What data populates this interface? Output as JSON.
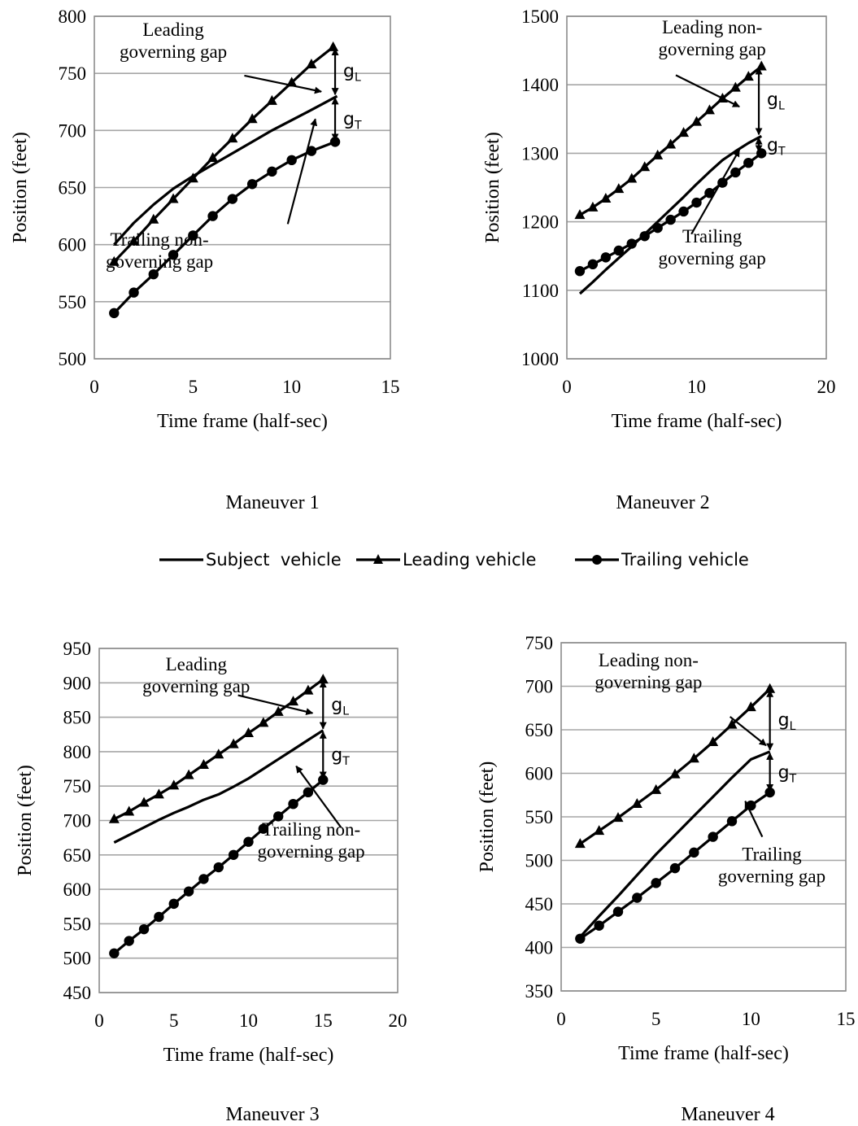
{
  "colors": {
    "series": "#000000",
    "grid": "#a6a6a6",
    "frame": "#8c8c8c",
    "background": "#ffffff"
  },
  "legend": [
    {
      "name": "Subject  vehicle",
      "marker": "none"
    },
    {
      "name": "Leading vehicle",
      "marker": "triangle"
    },
    {
      "name": "Trailing vehicle",
      "marker": "circle"
    }
  ],
  "chart_data": [
    {
      "type": "line",
      "caption": "Maneuver 1",
      "xlabel": "Time frame (half-sec)",
      "ylabel": "Position (feet)",
      "xlim": [
        0,
        15
      ],
      "ylim": [
        500,
        800
      ],
      "xticks": [
        0,
        5,
        10,
        15
      ],
      "yticks": [
        500,
        550,
        600,
        650,
        700,
        750,
        800
      ],
      "grid": "horizontal",
      "series": [
        {
          "name": "Subject  vehicle",
          "marker": "none",
          "x": [
            1,
            2,
            3,
            4,
            5,
            6,
            7,
            8,
            9,
            10,
            11,
            12.3
          ],
          "y": [
            600,
            619,
            635,
            649,
            660,
            670,
            680,
            690,
            700,
            709,
            718,
            730
          ]
        },
        {
          "name": "Leading vehicle",
          "marker": "triangle",
          "x": [
            1,
            2,
            3,
            4,
            5,
            6,
            7,
            8,
            9,
            10,
            11,
            12.1
          ],
          "y": [
            585,
            603,
            622,
            640,
            658,
            676,
            693,
            710,
            726,
            742,
            758,
            773
          ]
        },
        {
          "name": "Trailing vehicle",
          "marker": "circle",
          "x": [
            1,
            2,
            3,
            4,
            5,
            6,
            7,
            8,
            9,
            10,
            11,
            12.2
          ],
          "y": [
            540,
            558,
            574,
            591,
            608,
            625,
            640,
            653,
            664,
            674,
            682,
            690
          ]
        }
      ],
      "annotations": [
        {
          "lines": [
            "Leading",
            "governing gap"
          ],
          "pos": [
            4,
            783
          ],
          "arrow_from": [
            7.6,
            748
          ],
          "arrow_to": [
            11.5,
            734
          ]
        },
        {
          "lines": [
            "Trailing non-",
            "governing gap"
          ],
          "pos": [
            3.3,
            599
          ],
          "arrow_from": [
            9.8,
            618
          ],
          "arrow_to": [
            11.2,
            710
          ]
        }
      ],
      "gap_markers": [
        {
          "label": "gL",
          "x": 12.2,
          "y_top": 773,
          "y_bottom": 730,
          "label_y": 752
        },
        {
          "label": "gT",
          "x": 12.2,
          "y_top": 730,
          "y_bottom": 690,
          "label_y": 710
        }
      ]
    },
    {
      "type": "line",
      "caption": "Maneuver 2",
      "xlabel": "Time frame (half-sec)",
      "ylabel": "Position (feet)",
      "xlim": [
        0,
        20
      ],
      "ylim": [
        1000,
        1500
      ],
      "xticks": [
        0,
        10,
        20
      ],
      "yticks": [
        1000,
        1100,
        1200,
        1300,
        1400,
        1500
      ],
      "grid": "horizontal",
      "series": [
        {
          "name": "Subject  vehicle",
          "marker": "none",
          "x": [
            1,
            2,
            3,
            4,
            5,
            6,
            7,
            8,
            9,
            10,
            11,
            12,
            13,
            14,
            15
          ],
          "y": [
            1095,
            1112,
            1130,
            1147,
            1164,
            1182,
            1200,
            1218,
            1236,
            1255,
            1273,
            1290,
            1303,
            1315,
            1325
          ]
        },
        {
          "name": "Leading vehicle",
          "marker": "triangle",
          "x": [
            1,
            2,
            3,
            4,
            5,
            6,
            7,
            8,
            9,
            10,
            11,
            12,
            13,
            14,
            15
          ],
          "y": [
            1210,
            1221,
            1234,
            1248,
            1263,
            1280,
            1297,
            1313,
            1330,
            1346,
            1363,
            1380,
            1396,
            1412,
            1427
          ]
        },
        {
          "name": "Trailing vehicle",
          "marker": "circle",
          "x": [
            1,
            2,
            3,
            4,
            5,
            6,
            7,
            8,
            9,
            10,
            11,
            12,
            13,
            14,
            15
          ],
          "y": [
            1128,
            1138,
            1148,
            1158,
            1168,
            1179,
            1191,
            1203,
            1215,
            1228,
            1242,
            1257,
            1272,
            1286,
            1300
          ]
        }
      ],
      "annotations": [
        {
          "lines": [
            "Leading non-",
            "governing gap"
          ],
          "pos": [
            11.2,
            1475
          ],
          "arrow_from": [
            8.4,
            1414
          ],
          "arrow_to": [
            13.3,
            1368
          ]
        },
        {
          "lines": [
            "Trailing",
            "governing gap"
          ],
          "pos": [
            11.2,
            1170
          ],
          "arrow_from": [
            9.6,
            1182
          ],
          "arrow_to": [
            13.3,
            1305
          ]
        }
      ],
      "gap_markers": [
        {
          "label": "gL",
          "x": 14.8,
          "y_top": 1427,
          "y_bottom": 1325,
          "label_y": 1378
        },
        {
          "label": "gT",
          "x": 14.8,
          "y_top": 1325,
          "y_bottom": 1300,
          "label_y": 1312
        }
      ]
    },
    {
      "type": "line",
      "caption": "Maneuver 3",
      "xlabel": "Time frame (half-sec)",
      "ylabel": "Position (feet)",
      "xlim": [
        0,
        20
      ],
      "ylim": [
        450,
        950
      ],
      "xticks": [
        0,
        5,
        10,
        15,
        20
      ],
      "yticks": [
        450,
        500,
        550,
        600,
        650,
        700,
        750,
        800,
        850,
        900,
        950
      ],
      "grid": "horizontal",
      "series": [
        {
          "name": "Subject  vehicle",
          "marker": "none",
          "x": [
            1,
            2,
            3,
            4,
            5,
            6,
            7,
            8,
            9,
            10,
            11,
            12,
            13,
            14,
            15
          ],
          "y": [
            668,
            679,
            690,
            701,
            711,
            720,
            730,
            738,
            749,
            761,
            775,
            789,
            803,
            817,
            831
          ]
        },
        {
          "name": "Leading vehicle",
          "marker": "triangle",
          "x": [
            1,
            2,
            3,
            4,
            5,
            6,
            7,
            8,
            9,
            10,
            11,
            12,
            13,
            14,
            15
          ],
          "y": [
            702,
            713,
            726,
            738,
            751,
            766,
            781,
            796,
            811,
            827,
            842,
            858,
            873,
            889,
            905
          ]
        },
        {
          "name": "Trailing vehicle",
          "marker": "circle",
          "x": [
            1,
            2,
            3,
            4,
            5,
            6,
            7,
            8,
            9,
            10,
            11,
            12,
            13,
            14,
            15
          ],
          "y": [
            507,
            525,
            542,
            560,
            579,
            597,
            615,
            632,
            650,
            669,
            688,
            706,
            724,
            741,
            759
          ]
        }
      ],
      "annotations": [
        {
          "lines": [
            "Leading",
            "governing gap"
          ],
          "pos": [
            6.5,
            918
          ],
          "arrow_from": [
            9.3,
            882
          ],
          "arrow_to": [
            14.3,
            856
          ]
        },
        {
          "lines": [
            "Trailing non-",
            "governing gap"
          ],
          "pos": [
            14.2,
            678
          ],
          "arrow_from": [
            16.2,
            690
          ],
          "arrow_to": [
            13.2,
            779
          ]
        }
      ],
      "gap_markers": [
        {
          "label": "gL",
          "x": 15,
          "y_top": 905,
          "y_bottom": 831,
          "label_y": 868
        },
        {
          "label": "gT",
          "x": 15,
          "y_top": 831,
          "y_bottom": 759,
          "label_y": 795
        }
      ]
    },
    {
      "type": "line",
      "caption": "Maneuver 4",
      "xlabel": "Time frame (half-sec)",
      "ylabel": "Position (feet)",
      "xlim": [
        0,
        15
      ],
      "ylim": [
        350,
        750
      ],
      "xticks": [
        0,
        5,
        10,
        15
      ],
      "yticks": [
        350,
        400,
        450,
        500,
        550,
        600,
        650,
        700,
        750
      ],
      "grid": "horizontal",
      "series": [
        {
          "name": "Subject  vehicle",
          "marker": "none",
          "x": [
            1,
            2,
            3,
            4,
            5,
            6,
            7,
            8,
            9,
            10,
            11
          ],
          "y": [
            412,
            436,
            459,
            483,
            507,
            529,
            551,
            573,
            595,
            616,
            625
          ]
        },
        {
          "name": "Leading vehicle",
          "marker": "triangle",
          "x": [
            1,
            2,
            3,
            4,
            5,
            6,
            7,
            8,
            9,
            10,
            11
          ],
          "y": [
            519,
            534,
            549,
            565,
            581,
            599,
            617,
            636,
            656,
            676,
            697
          ]
        },
        {
          "name": "Trailing vehicle",
          "marker": "circle",
          "x": [
            1,
            2,
            3,
            4,
            5,
            6,
            7,
            8,
            9,
            10,
            11
          ],
          "y": [
            410,
            425,
            441,
            457,
            474,
            491,
            509,
            527,
            545,
            563,
            578
          ]
        }
      ],
      "annotations": [
        {
          "lines": [
            "Leading non-",
            "governing gap"
          ],
          "pos": [
            4.6,
            723
          ],
          "arrow_from": [
            8.9,
            665
          ],
          "arrow_to": [
            10.8,
            632
          ]
        },
        {
          "lines": [
            "Trailing",
            "governing gap"
          ],
          "pos": [
            11.1,
            500
          ],
          "arrow_from": [
            10.6,
            527
          ],
          "arrow_to": [
            9.7,
            568
          ]
        }
      ],
      "gap_markers": [
        {
          "label": "gL",
          "x": 11,
          "y_top": 697,
          "y_bottom": 625,
          "label_y": 661
        },
        {
          "label": "gT",
          "x": 11,
          "y_top": 625,
          "y_bottom": 578,
          "label_y": 601
        }
      ]
    }
  ]
}
